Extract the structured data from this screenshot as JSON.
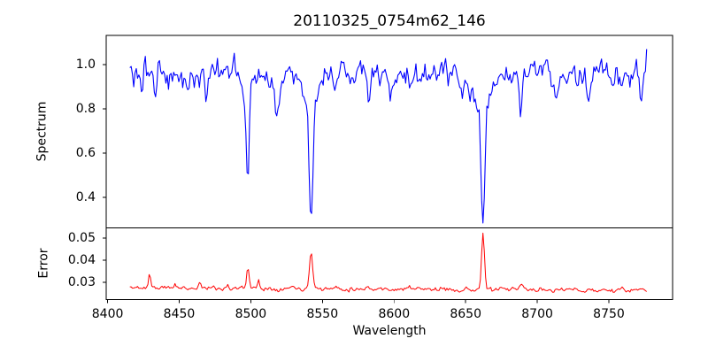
{
  "figure": {
    "title": "20110325_0754m62_146",
    "background": "#ffffff",
    "axis_color": "#000000"
  },
  "chart_data": {
    "type": "line",
    "title": "20110325_0754m62_146",
    "xlabel": "Wavelength",
    "legend": "none",
    "grid": false,
    "xlim": [
      8399.0,
      8794.5
    ],
    "x_start": 8415.5,
    "x_end": 8777.0,
    "x_step": 0.9,
    "xticks": [
      {
        "v": 8400,
        "label": "8400"
      },
      {
        "v": 8450,
        "label": "8450"
      },
      {
        "v": 8500,
        "label": "8500"
      },
      {
        "v": 8550,
        "label": "8550"
      },
      {
        "v": 8600,
        "label": "8600"
      },
      {
        "v": 8650,
        "label": "8650"
      },
      {
        "v": 8700,
        "label": "8700"
      },
      {
        "v": 8750,
        "label": "8750"
      }
    ],
    "panels": [
      {
        "name": "spectrum",
        "ylabel": "Spectrum",
        "color": "#0000ff",
        "ylim": [
          0.263,
          1.131
        ],
        "yticks": [
          {
            "v": 0.4,
            "label": "0.4"
          },
          {
            "v": 0.6,
            "label": "0.6"
          },
          {
            "v": 0.8,
            "label": "0.8"
          },
          {
            "v": 1.0,
            "label": "1.0"
          }
        ],
        "continuum": 0.952,
        "noise": {
          "rho": 0.5,
          "sigma": 0.055,
          "seed": 3
        },
        "absorption_lines": [
          {
            "center": 8424.0,
            "depth": 0.12,
            "sigma": 1.2
          },
          {
            "center": 8433.8,
            "depth": 0.15,
            "sigma": 1.4
          },
          {
            "center": 8468.5,
            "depth": 0.11,
            "sigma": 1.6
          },
          {
            "center": 8498.0,
            "depth": 0.42,
            "sigma": 1.3
          },
          {
            "center": 8498.0,
            "depth": 0.09,
            "sigma": 4.0
          },
          {
            "center": 8518.1,
            "depth": 0.14,
            "sigma": 1.4
          },
          {
            "center": 8542.1,
            "depth": 0.52,
            "sigma": 1.9
          },
          {
            "center": 8542.1,
            "depth": 0.13,
            "sigma": 6.0
          },
          {
            "center": 8582.3,
            "depth": 0.09,
            "sigma": 1.4
          },
          {
            "center": 8598.0,
            "depth": 0.08,
            "sigma": 1.3
          },
          {
            "center": 8611.0,
            "depth": 0.09,
            "sigma": 1.4
          },
          {
            "center": 8648.0,
            "depth": 0.07,
            "sigma": 1.4
          },
          {
            "center": 8662.1,
            "depth": 0.52,
            "sigma": 1.9
          },
          {
            "center": 8662.1,
            "depth": 0.13,
            "sigma": 6.0
          },
          {
            "center": 8674.8,
            "depth": 0.08,
            "sigma": 1.2
          },
          {
            "center": 8688.6,
            "depth": 0.18,
            "sigma": 1.5
          },
          {
            "center": 8713.0,
            "depth": 0.07,
            "sigma": 1.2
          },
          {
            "center": 8736.0,
            "depth": 0.06,
            "sigma": 1.2
          },
          {
            "center": 8772.8,
            "depth": 0.11,
            "sigma": 1.3
          }
        ],
        "end_spike": {
          "start": 8775.2,
          "value": 1.09
        },
        "value_clamp": [
          0.285,
          1.12
        ]
      },
      {
        "name": "error",
        "ylabel": "Error",
        "color": "#ff0000",
        "ylim": [
          0.0222,
          0.0546
        ],
        "yticks": [
          {
            "v": 0.03,
            "label": "0.03"
          },
          {
            "v": 0.04,
            "label": "0.04"
          },
          {
            "v": 0.05,
            "label": "0.05"
          }
        ],
        "baseline": {
          "start_value": 0.0276,
          "end_value": 0.0263
        },
        "noise": {
          "rho": 0.45,
          "sigma": 0.0009,
          "seed": 11
        },
        "peaks": [
          {
            "center": 8429.3,
            "amp": 0.007,
            "sigma": 1.0
          },
          {
            "center": 8447.0,
            "amp": 0.0018,
            "sigma": 1.0
          },
          {
            "center": 8464.5,
            "amp": 0.0032,
            "sigma": 1.0
          },
          {
            "center": 8484.0,
            "amp": 0.0015,
            "sigma": 1.0
          },
          {
            "center": 8498.0,
            "amp": 0.0092,
            "sigma": 1.3
          },
          {
            "center": 8505.5,
            "amp": 0.004,
            "sigma": 1.0
          },
          {
            "center": 8529.0,
            "amp": 0.0015,
            "sigma": 1.2
          },
          {
            "center": 8542.1,
            "amp": 0.0175,
            "sigma": 1.6
          },
          {
            "center": 8560.0,
            "amp": 0.0012,
            "sigma": 1.2
          },
          {
            "center": 8582.0,
            "amp": 0.0018,
            "sigma": 1.2
          },
          {
            "center": 8611.0,
            "amp": 0.0015,
            "sigma": 1.2
          },
          {
            "center": 8662.1,
            "amp": 0.0255,
            "sigma": 1.4
          },
          {
            "center": 8689.0,
            "amp": 0.0028,
            "sigma": 1.6
          },
          {
            "center": 8713.0,
            "amp": 0.0012,
            "sigma": 1.2
          },
          {
            "center": 8770.0,
            "amp": 0.001,
            "sigma": 1.5
          }
        ],
        "value_clamp": [
          0.0235,
          0.0535
        ]
      }
    ]
  }
}
